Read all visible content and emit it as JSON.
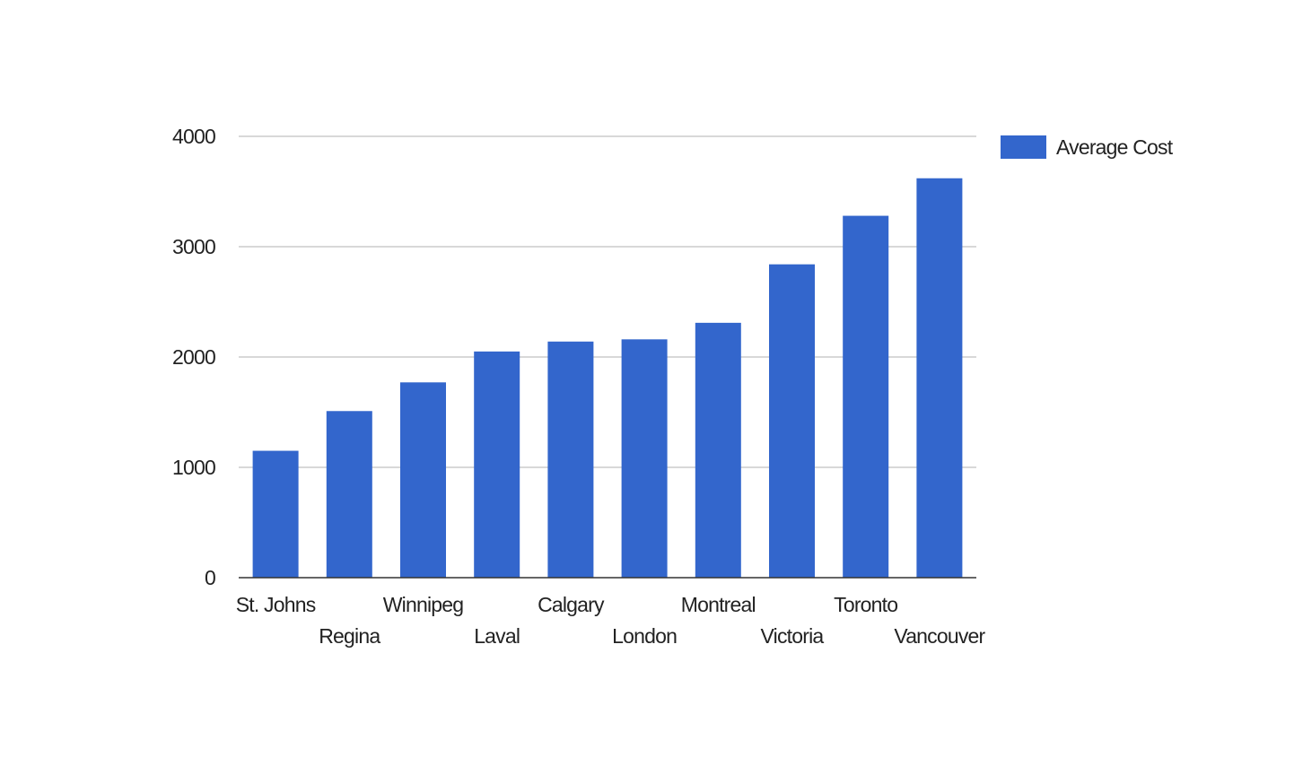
{
  "chart_data": {
    "type": "bar",
    "categories": [
      "St. Johns",
      "Regina",
      "Winnipeg",
      "Laval",
      "Calgary",
      "London",
      "Montreal",
      "Victoria",
      "Toronto",
      "Vancouver"
    ],
    "series": [
      {
        "name": "Average Cost",
        "color": "#3366cc",
        "values": [
          1150,
          1510,
          1770,
          2050,
          2140,
          2160,
          2310,
          2840,
          3280,
          3620
        ]
      }
    ],
    "title": "",
    "xlabel": "",
    "ylabel": "",
    "ylim": [
      0,
      4000
    ],
    "yticks": [
      "0",
      "1000",
      "2000",
      "3000",
      "4000"
    ],
    "grid": true,
    "legend": "right-top"
  }
}
